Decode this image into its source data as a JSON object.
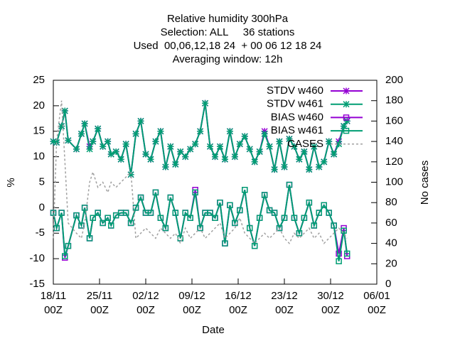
{
  "chart_data": {
    "type": "line",
    "title": [
      "Relative humidity 300hPa",
      "Selection: ALL     36 stations",
      "Used  00,06,12,18 24  + 00 06 12 18 24",
      "Averaging window: 12h"
    ],
    "xlabel": "Date",
    "ylabel": "%",
    "y2label": "No cases",
    "x": [
      "18/11 00Z",
      "18/11 12Z",
      "19/11 06Z",
      "19/11 18Z",
      "20/11 06Z",
      "21/11 12Z",
      "22/11 06Z",
      "22/11 18Z",
      "23/11 12Z",
      "24/11 00Z",
      "24/11 18Z",
      "25/11 12Z",
      "26/11 06Z",
      "26/11 18Z",
      "27/11 12Z",
      "28/11 06Z",
      "29/11 00Z",
      "29/11 18Z",
      "30/11 12Z",
      "01/12 06Z",
      "02/12 00Z",
      "02/12 18Z",
      "03/12 12Z",
      "04/12 06Z",
      "05/12 00Z",
      "05/12 18Z",
      "06/12 12Z",
      "07/12 06Z",
      "08/12 00Z",
      "08/12 18Z",
      "09/12 12Z",
      "10/12 06Z",
      "11/12 00Z",
      "11/12 18Z",
      "12/12 12Z",
      "13/12 06Z",
      "14/12 00Z",
      "14/12 18Z",
      "15/12 12Z",
      "16/12 06Z",
      "17/12 00Z",
      "17/12 18Z",
      "18/12 12Z",
      "19/12 06Z",
      "20/12 00Z",
      "20/12 18Z",
      "21/12 12Z",
      "22/12 06Z",
      "23/12 00Z",
      "23/12 18Z",
      "24/12 12Z",
      "25/12 06Z",
      "26/12 00Z",
      "26/12 18Z",
      "27/12 12Z",
      "28/12 06Z",
      "29/12 00Z",
      "29/12 18Z",
      "30/12 12Z",
      "31/12 06Z",
      "01/01 00Z",
      "01/01 12Z"
    ],
    "xlim": [
      "18/11 00Z",
      "06/01 00Z"
    ],
    "xticks": [
      {
        "value": "18/11 00Z",
        "label": "18/11 00Z"
      },
      {
        "value": "25/11 00Z",
        "label": "25/11 00Z"
      },
      {
        "value": "02/12 00Z",
        "label": "02/12 00Z"
      },
      {
        "value": "09/12 00Z",
        "label": "09/12 00Z"
      },
      {
        "value": "16/12 00Z",
        "label": "16/12 00Z"
      },
      {
        "value": "23/12 00Z",
        "label": "23/12 00Z"
      },
      {
        "value": "30/12 00Z",
        "label": "30/12 00Z"
      },
      {
        "value": "06/01 00Z",
        "label": "06/01 00Z"
      }
    ],
    "ylim": [
      -15,
      25
    ],
    "yticks": [
      -15,
      -10,
      -5,
      0,
      5,
      10,
      15,
      20,
      25
    ],
    "y2lim": [
      0,
      200
    ],
    "y2ticks": [
      0,
      20,
      40,
      60,
      80,
      100,
      120,
      140,
      160,
      180,
      200
    ],
    "series": [
      {
        "name": "STDV w460",
        "color": "#9400d3",
        "marker": "star",
        "values": [
          13,
          12.8,
          16,
          19,
          13.2,
          11.5,
          14.5,
          16.5,
          12,
          13,
          15.5,
          12,
          13,
          10.5,
          11,
          9.5,
          12.5,
          6.5,
          14.5,
          17,
          10.5,
          9.5,
          13,
          15,
          8,
          12,
          8.5,
          11,
          10,
          11.5,
          12.5,
          15,
          20.5,
          12,
          10,
          12,
          9.5,
          15,
          10,
          12.5,
          14,
          11.5,
          9,
          11,
          15,
          12,
          7.5,
          13,
          8,
          13.5,
          12,
          9.5,
          11,
          7.5,
          12,
          8,
          9,
          13,
          10.5,
          13,
          16,
          17
        ]
      },
      {
        "name": "STDV w461",
        "color": "#009e73",
        "marker": "star",
        "values": [
          13,
          12.8,
          16,
          19,
          13.2,
          11.5,
          14.5,
          16.5,
          11.5,
          13,
          15.5,
          12,
          13,
          10.5,
          11,
          9.5,
          12.5,
          6.5,
          14.5,
          17,
          10.5,
          9.5,
          13,
          15,
          8,
          12,
          8.5,
          11,
          10,
          11.5,
          12.5,
          15,
          20.5,
          12,
          10,
          12,
          9.5,
          15,
          10,
          12.5,
          14,
          11.5,
          9,
          11,
          14.5,
          12,
          7.5,
          13,
          8,
          13.5,
          12,
          9.5,
          11,
          7.5,
          12,
          8,
          9,
          13,
          10.5,
          12.5,
          16,
          17
        ]
      },
      {
        "name": "BIAS w460",
        "color": "#9400d3",
        "marker": "square",
        "values": [
          -1,
          -4,
          -1,
          -9.8,
          -7.5,
          -1.5,
          -3.5,
          0,
          -6,
          -2,
          -1,
          -3,
          -2,
          -3.5,
          -1.5,
          -1,
          -1,
          -3,
          0,
          2,
          -1,
          -1,
          3,
          -2,
          -4,
          2,
          -1,
          -6,
          -1,
          -2,
          3.5,
          -4,
          -1,
          -1,
          -2,
          1,
          -7,
          0.5,
          -3,
          -0.5,
          3.5,
          -4,
          -7.5,
          -2,
          2.5,
          -0.5,
          -1,
          -4,
          -2,
          4.5,
          -2,
          -5,
          -2,
          1,
          -3.5,
          -1,
          0.5,
          -1,
          -3.5,
          -9,
          -4,
          -9.5
        ]
      },
      {
        "name": "BIAS w461",
        "color": "#009e73",
        "marker": "square",
        "values": [
          -1,
          -4,
          -1,
          -9.5,
          -7.5,
          -1.5,
          -3.5,
          0,
          -6,
          -2,
          -1,
          -3,
          -2,
          -3.5,
          -1.5,
          -1,
          -1,
          -3,
          0,
          2,
          -1,
          -1,
          3,
          -2,
          -4,
          2,
          -1,
          -6,
          -1,
          -2,
          3,
          -4,
          -1,
          -1,
          -2,
          1,
          -7,
          0.5,
          -3,
          -0.5,
          3.5,
          -4,
          -7.5,
          -2,
          2.5,
          -0.5,
          -1,
          -4,
          -2,
          4.5,
          -2,
          -5,
          -2,
          1,
          -3.5,
          -1,
          0.5,
          -1,
          -3.5,
          -10.5,
          -4.5,
          -9
        ]
      },
      {
        "name": "CASES",
        "color": "#a0a0a0",
        "marker": "none",
        "dash": true,
        "axis": "y2",
        "values": [
          45,
          140,
          180,
          120,
          60,
          50,
          45,
          60,
          100,
          110,
          95,
          100,
          90,
          100,
          95,
          100,
          105,
          110,
          45,
          50,
          55,
          50,
          45,
          55,
          50,
          45,
          50,
          40,
          55,
          45,
          50,
          55,
          45,
          50,
          55,
          60,
          45,
          50,
          55,
          65,
          50,
          45,
          40,
          45,
          50,
          45,
          50,
          55,
          45,
          40,
          50,
          45,
          50,
          55,
          45,
          50,
          40,
          45,
          50,
          55,
          50,
          45
        ]
      }
    ]
  }
}
